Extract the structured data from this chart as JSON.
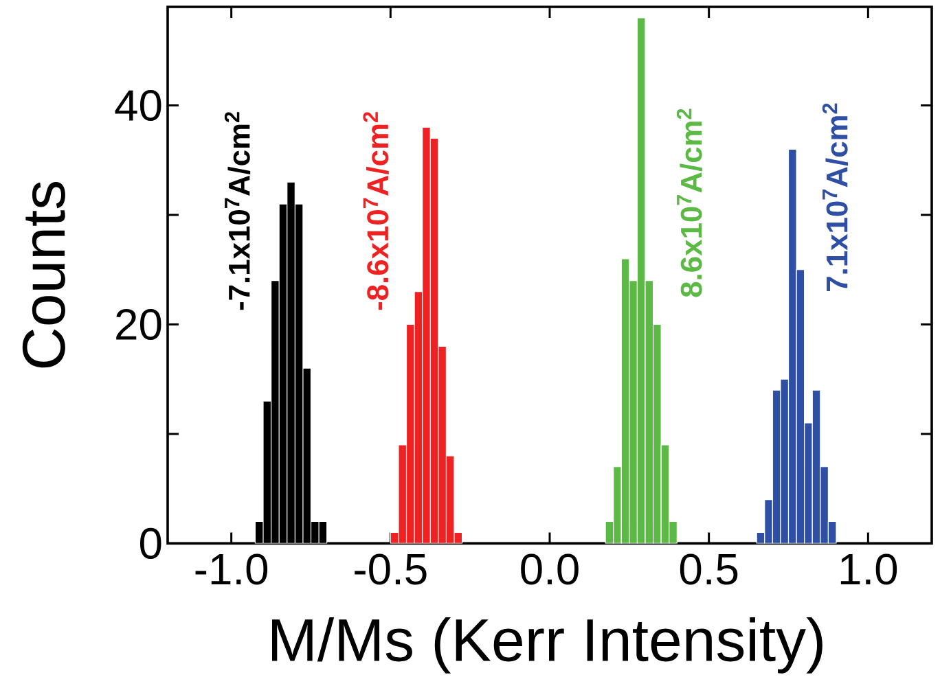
{
  "chart_data": {
    "type": "histogram",
    "xlabel": "M/Ms (Kerr Intensity)",
    "ylabel": "Counts",
    "xlim": [
      -1.2,
      1.2
    ],
    "ylim": [
      0,
      49
    ],
    "xticks": [
      {
        "value": -1,
        "label": "-1.0"
      },
      {
        "value": -0.5,
        "label": "-0.5"
      },
      {
        "value": 0,
        "label": "0.0"
      },
      {
        "value": 0.5,
        "label": "0.5"
      },
      {
        "value": 1,
        "label": "1.0"
      }
    ],
    "yticks": [
      {
        "value": 0,
        "label": "0"
      },
      {
        "value": 10,
        "label": null
      },
      {
        "value": 20,
        "label": "20"
      },
      {
        "value": 30,
        "label": null
      },
      {
        "value": 40,
        "label": "40"
      }
    ],
    "bins": [
      -0.925,
      -0.9,
      -0.875,
      -0.85,
      -0.825,
      -0.8,
      -0.775,
      -0.75,
      -0.725,
      -0.7,
      -0.675,
      -0.65,
      -0.625,
      -0.6,
      -0.575,
      -0.55,
      -0.525,
      -0.5,
      -0.475,
      -0.45,
      -0.425,
      -0.4,
      -0.375,
      -0.35,
      -0.325,
      -0.3,
      -0.275,
      -0.25,
      -0.225,
      -0.2,
      -0.175,
      -0.15,
      -0.125,
      -0.1,
      -0.075,
      -0.05,
      -0.025,
      0,
      0.025,
      0.05,
      0.075,
      0.1,
      0.125,
      0.15,
      0.175,
      0.2,
      0.225,
      0.25,
      0.275,
      0.3,
      0.325,
      0.35,
      0.375,
      0.4,
      0.425,
      0.45,
      0.475,
      0.5,
      0.525,
      0.55,
      0.575,
      0.6,
      0.625,
      0.65,
      0.675,
      0.7,
      0.725,
      0.75,
      0.775,
      0.8,
      0.825,
      0.85,
      0.875,
      0.9
    ],
    "series": [
      {
        "name": "-7.1x10$^{7}$A/cm$^{2}$",
        "color": "#000000",
        "values": [
          2,
          13,
          24,
          31,
          33,
          31,
          16,
          2,
          2,
          null,
          null,
          null,
          null,
          null,
          null,
          null,
          null,
          null,
          null,
          null,
          null,
          null,
          null,
          null,
          null,
          null,
          null,
          null,
          null,
          null,
          null,
          null,
          null,
          null,
          null,
          null,
          null,
          null,
          null,
          null,
          null,
          null,
          null,
          null,
          null,
          null,
          null,
          null,
          null,
          null,
          null,
          null,
          null,
          null,
          null,
          null,
          null,
          null,
          null,
          null,
          null,
          null,
          null,
          null,
          null,
          null,
          null,
          null,
          null,
          null,
          null,
          null,
          null
        ]
      },
      {
        "name": "-8.6x10$^{7}$A/cm$^{2}$",
        "color": "#ee2222",
        "values": [
          null,
          null,
          null,
          null,
          null,
          null,
          null,
          null,
          null,
          null,
          null,
          null,
          null,
          null,
          null,
          null,
          null,
          1,
          9,
          20,
          23,
          38,
          37,
          18,
          8,
          1,
          null,
          null,
          null,
          null,
          null,
          null,
          null,
          null,
          null,
          null,
          null,
          null,
          null,
          null,
          null,
          null,
          null,
          null,
          null,
          null,
          null,
          null,
          null,
          null,
          null,
          null,
          null,
          null,
          null,
          null,
          null,
          null,
          null,
          null,
          null,
          null,
          null,
          null,
          null,
          null,
          null,
          null,
          null,
          null,
          null,
          null,
          null
        ]
      },
      {
        "name": "8.6x10$^{7}$A/cm$^{2}$",
        "color": "#5cb946",
        "values": [
          null,
          null,
          null,
          null,
          null,
          null,
          null,
          null,
          null,
          null,
          null,
          null,
          null,
          null,
          null,
          null,
          null,
          null,
          null,
          null,
          null,
          null,
          null,
          null,
          null,
          null,
          null,
          null,
          null,
          null,
          null,
          null,
          null,
          null,
          null,
          null,
          null,
          null,
          null,
          null,
          null,
          null,
          null,
          null,
          2,
          7,
          26,
          24,
          48,
          24,
          20,
          9,
          2,
          null,
          null,
          null,
          null,
          null,
          null,
          null,
          null,
          null,
          null,
          null,
          null,
          null,
          null,
          null,
          null,
          null,
          null,
          null,
          null
        ]
      },
      {
        "name": "7.1x10$^{7}$A/cm$^{2}$",
        "color": "#2e4fa3",
        "values": [
          null,
          null,
          null,
          null,
          null,
          null,
          null,
          null,
          null,
          null,
          null,
          null,
          null,
          null,
          null,
          null,
          null,
          null,
          null,
          null,
          null,
          null,
          null,
          null,
          null,
          null,
          null,
          null,
          null,
          null,
          null,
          null,
          null,
          null,
          null,
          null,
          null,
          null,
          null,
          null,
          null,
          null,
          null,
          null,
          null,
          null,
          null,
          null,
          null,
          null,
          null,
          null,
          null,
          null,
          null,
          null,
          null,
          null,
          null,
          null,
          null,
          null,
          null,
          1,
          4,
          14,
          15,
          36,
          25,
          11,
          14,
          7,
          2
        ]
      }
    ]
  }
}
